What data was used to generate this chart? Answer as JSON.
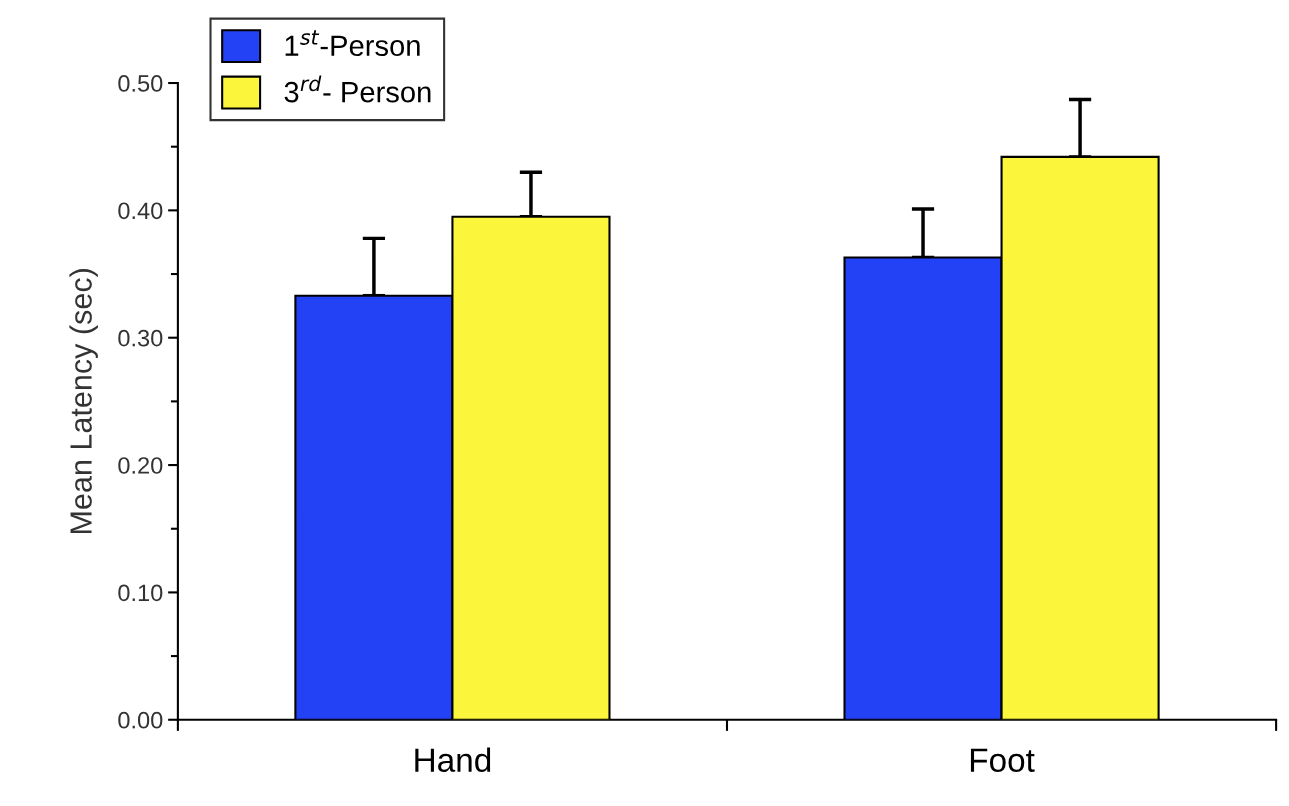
{
  "chart_data": {
    "type": "bar",
    "ylabel": "Mean Latency (sec)",
    "categories": [
      "Hand",
      "Foot"
    ],
    "series": [
      {
        "name": "1$^{st}$-Person",
        "color": "#2442f5",
        "values": [
          0.333,
          0.363
        ],
        "errors": [
          [
            0.333,
            0.378
          ],
          [
            0.363,
            0.401
          ]
        ]
      },
      {
        "name": "3$^{rd}$- Person",
        "color": "#fbf53c",
        "values": [
          0.395,
          0.442
        ],
        "errors": [
          [
            0.395,
            0.43
          ],
          [
            0.442,
            0.487
          ]
        ]
      }
    ],
    "ylim": [
      0,
      0.5
    ],
    "yticks": [
      {
        "value": 0,
        "label": "0.00"
      },
      {
        "value": 0.1,
        "label": "0.10"
      },
      {
        "value": 0.2,
        "label": "0.20"
      },
      {
        "value": 0.3,
        "label": "0.30"
      },
      {
        "value": 0.4,
        "label": "0.40"
      },
      {
        "value": 0.5,
        "label": "0.50"
      }
    ],
    "grid": false,
    "legend": "top left"
  }
}
